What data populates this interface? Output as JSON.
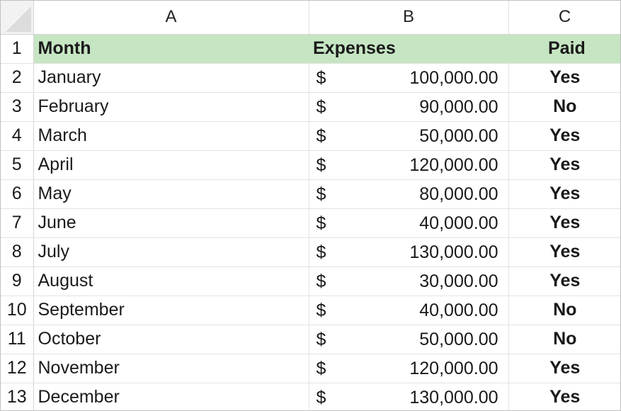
{
  "spreadsheet": {
    "column_headers": [
      "A",
      "B",
      "C"
    ],
    "row_numbers": [
      "1",
      "2",
      "3",
      "4",
      "5",
      "6",
      "7",
      "8",
      "9",
      "10",
      "11",
      "12",
      "13"
    ],
    "header_row": {
      "month": "Month",
      "expenses": "Expenses",
      "paid": "Paid"
    },
    "currency_symbol": "$",
    "header_fill_color": "#c6e6c3",
    "rows": [
      {
        "month": "January",
        "expenses": "100,000.00",
        "paid": "Yes"
      },
      {
        "month": "February",
        "expenses": "90,000.00",
        "paid": "No"
      },
      {
        "month": "March",
        "expenses": "50,000.00",
        "paid": "Yes"
      },
      {
        "month": "April",
        "expenses": "120,000.00",
        "paid": "Yes"
      },
      {
        "month": "May",
        "expenses": "80,000.00",
        "paid": "Yes"
      },
      {
        "month": "June",
        "expenses": "40,000.00",
        "paid": "Yes"
      },
      {
        "month": "July",
        "expenses": "130,000.00",
        "paid": "Yes"
      },
      {
        "month": "August",
        "expenses": "30,000.00",
        "paid": "Yes"
      },
      {
        "month": "September",
        "expenses": "40,000.00",
        "paid": "No"
      },
      {
        "month": "October",
        "expenses": "50,000.00",
        "paid": "No"
      },
      {
        "month": "November",
        "expenses": "120,000.00",
        "paid": "Yes"
      },
      {
        "month": "December",
        "expenses": "130,000.00",
        "paid": "Yes"
      }
    ]
  }
}
